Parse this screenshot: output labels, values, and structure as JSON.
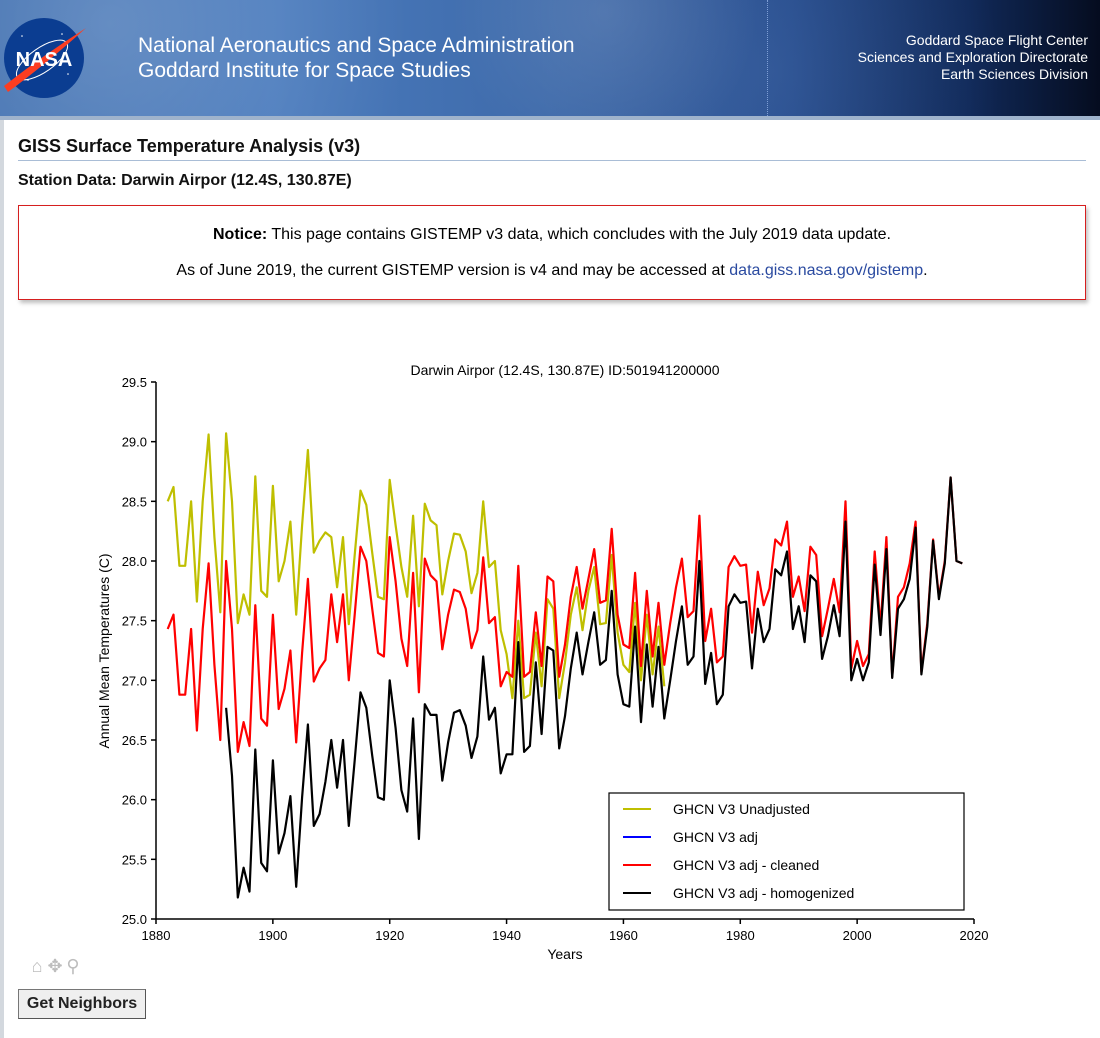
{
  "header": {
    "agency_line1": "National Aeronautics and Space Administration",
    "agency_line2": "Goddard Institute for Space Studies",
    "center_line1": "Goddard Space Flight Center",
    "center_line2": "Sciences and Exploration Directorate",
    "center_line3": "Earth Sciences Division",
    "logo_text": "NASA"
  },
  "page": {
    "title": "GISS Surface Temperature Analysis (v3)",
    "subtitle": "Station Data: Darwin Airpor (12.4S, 130.87E)"
  },
  "notice": {
    "label": "Notice:",
    "line1": " This page contains GISTEMP v3 data, which concludes with the July 2019 data update.",
    "line2_prefix": "As of June 2019, the current GISTEMP version is v4 and may be accessed at ",
    "link_text": "data.giss.nasa.gov/gistemp",
    "line2_suffix": ".",
    "border_color": "#d61f1f",
    "link_color": "#2a4aa0"
  },
  "toolbar": {
    "icons": [
      "home-icon",
      "pan-icon",
      "zoom-icon"
    ],
    "get_neighbors_label": "Get Neighbors"
  },
  "chart_data": {
    "type": "line",
    "title": "Darwin Airpor (12.4S, 130.87E) ID:501941200000",
    "xlabel": "Years",
    "ylabel": "Annual Mean Temperatures (C)",
    "xlim": [
      1880,
      2020
    ],
    "ylim": [
      25.0,
      29.5
    ],
    "x_ticks": [
      "1880",
      "1900",
      "1920",
      "1940",
      "1960",
      "1980",
      "2000",
      "2020"
    ],
    "y_ticks": [
      "25.0",
      "25.5",
      "26.0",
      "26.5",
      "27.0",
      "27.5",
      "28.0",
      "28.5",
      "29.0",
      "29.5"
    ],
    "grid": false,
    "legend_position": "bottom-right",
    "series": [
      {
        "name": "GHCN V3 Unadjusted",
        "color": "#bfbf00",
        "start_year": 1882,
        "values": [
          28.5,
          28.62,
          27.96,
          27.96,
          28.5,
          27.66,
          28.5,
          29.06,
          28.2,
          27.57,
          29.07,
          28.5,
          27.48,
          27.72,
          27.55,
          28.71,
          27.75,
          27.7,
          28.63,
          27.83,
          28.0,
          28.33,
          27.55,
          28.3,
          28.93,
          28.07,
          28.17,
          28.24,
          28.2,
          27.78,
          28.2,
          27.47,
          28.05,
          28.59,
          28.47,
          28.07,
          27.7,
          27.68,
          28.68,
          28.3,
          27.95,
          27.7,
          28.38,
          27.62,
          28.48,
          28.34,
          28.3,
          27.72,
          28.0,
          28.23,
          28.22,
          28.08,
          27.73,
          27.9,
          28.5,
          27.95,
          28.0,
          27.42,
          27.22,
          26.85,
          27.5,
          26.85,
          26.88,
          27.4,
          26.95,
          27.68,
          27.6,
          26.85,
          27.15,
          27.55,
          27.78,
          27.42,
          27.75,
          27.95,
          27.47,
          27.48,
          28.05,
          27.4,
          27.13,
          27.07,
          27.65,
          27.0,
          27.55,
          27.05,
          27.45,
          26.95
        ]
      },
      {
        "name": "GHCN V3 adj",
        "color": "#0000ff",
        "start_year": null,
        "values": []
      },
      {
        "name": "GHCN V3 adj - cleaned",
        "color": "#ff0000",
        "start_year": 1882,
        "values": [
          27.43,
          27.55,
          26.88,
          26.88,
          27.43,
          26.58,
          27.43,
          27.98,
          27.13,
          26.5,
          28.0,
          27.43,
          26.4,
          26.65,
          26.45,
          27.63,
          26.68,
          26.62,
          27.55,
          26.76,
          26.93,
          27.25,
          26.48,
          27.23,
          27.85,
          26.99,
          27.1,
          27.17,
          27.72,
          27.32,
          27.72,
          27.0,
          27.55,
          28.12,
          28.0,
          27.6,
          27.23,
          27.2,
          28.2,
          27.83,
          27.35,
          27.12,
          27.9,
          26.9,
          28.02,
          27.88,
          27.83,
          27.26,
          27.55,
          27.76,
          27.74,
          27.6,
          27.27,
          27.42,
          28.03,
          27.48,
          27.53,
          26.95,
          27.07,
          27.03,
          27.96,
          27.03,
          27.07,
          27.57,
          27.12,
          27.87,
          27.83,
          27.03,
          27.3,
          27.7,
          27.95,
          27.6,
          27.85,
          28.1,
          27.65,
          27.67,
          28.27,
          27.55,
          27.3,
          27.27,
          27.9,
          27.12,
          27.75,
          27.2,
          27.65,
          27.13,
          27.48,
          27.78,
          28.02,
          27.53,
          27.58,
          28.38,
          27.33,
          27.6,
          27.15,
          27.2,
          27.95,
          28.04,
          27.96,
          27.97,
          27.4,
          27.91,
          27.63,
          27.77,
          28.18,
          28.13,
          28.33,
          27.7,
          27.87,
          27.58,
          28.12,
          28.05,
          27.37,
          27.6,
          27.85,
          27.57,
          28.5,
          27.1,
          27.33,
          27.12,
          27.22,
          28.08,
          27.45,
          28.2,
          27.03,
          27.7,
          27.78,
          27.98,
          28.33,
          27.07,
          27.48,
          28.18,
          27.7,
          28.0,
          28.7,
          28.0,
          27.98
        ]
      },
      {
        "name": "GHCN V3 adj - homogenized",
        "color": "#000000",
        "start_year": 1892,
        "values": [
          26.77,
          26.2,
          25.18,
          25.43,
          25.23,
          26.42,
          25.47,
          25.4,
          26.33,
          25.55,
          25.72,
          26.03,
          25.27,
          26.02,
          26.63,
          25.78,
          25.88,
          26.15,
          26.5,
          26.1,
          26.5,
          25.78,
          26.33,
          26.9,
          26.77,
          26.37,
          26.02,
          26.0,
          27.0,
          26.6,
          26.08,
          25.9,
          26.68,
          25.67,
          26.8,
          26.71,
          26.71,
          26.16,
          26.48,
          26.73,
          26.75,
          26.62,
          26.35,
          26.53,
          27.2,
          26.67,
          26.77,
          26.22,
          26.38,
          26.38,
          27.32,
          26.4,
          26.45,
          27.15,
          26.55,
          27.28,
          27.25,
          26.43,
          26.7,
          27.1,
          27.4,
          27.05,
          27.32,
          27.57,
          27.13,
          27.17,
          27.75,
          27.05,
          26.8,
          26.78,
          27.45,
          26.65,
          27.3,
          26.78,
          27.28,
          26.68,
          27.0,
          27.33,
          27.62,
          27.13,
          27.2,
          28.0,
          26.97,
          27.23,
          26.8,
          26.88,
          27.62,
          27.72,
          27.65,
          27.66,
          27.1,
          27.6,
          27.32,
          27.43,
          27.93,
          27.88,
          28.08,
          27.43,
          27.62,
          27.32,
          27.88,
          27.83,
          27.18,
          27.37,
          27.63,
          27.37,
          28.33,
          27.0,
          27.18,
          27.0,
          27.15,
          27.97,
          27.38,
          28.1,
          27.02,
          27.6,
          27.68,
          27.85,
          28.28,
          27.05,
          27.45,
          28.17,
          27.68,
          27.98,
          28.7,
          28.0,
          27.98
        ]
      }
    ]
  }
}
